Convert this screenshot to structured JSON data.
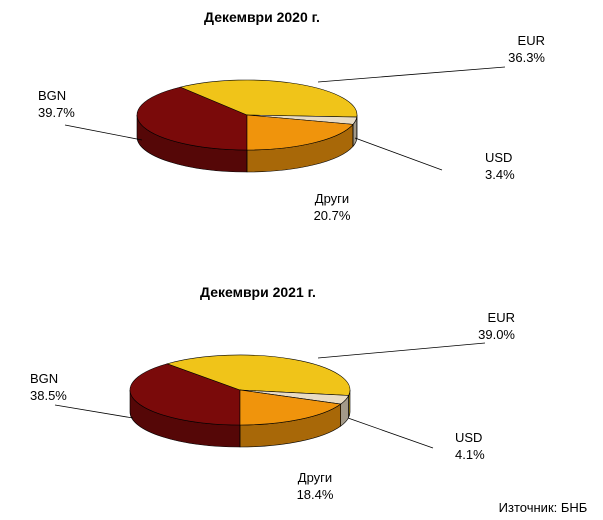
{
  "chart_data": [
    {
      "type": "pie3d",
      "title": "Декември 2020 г.",
      "categories": [
        "BGN",
        "EUR",
        "USD",
        "Други"
      ],
      "values": [
        39.7,
        36.3,
        3.4,
        20.7
      ],
      "value_labels": [
        "39.7%",
        "36.3%",
        "3.4%",
        "20.7%"
      ],
      "colors": [
        "#7a0a0a",
        "#f0c419",
        "#e9dcc4",
        "#f0940c"
      ]
    },
    {
      "type": "pie3d",
      "title": "Декември 2021 г.",
      "categories": [
        "BGN",
        "EUR",
        "USD",
        "Други"
      ],
      "values": [
        38.5,
        39.0,
        4.1,
        18.4
      ],
      "value_labels": [
        "38.5%",
        "39.0%",
        "4.1%",
        "18.4%"
      ],
      "colors": [
        "#7a0a0a",
        "#f0c419",
        "#e9dcc4",
        "#f0940c"
      ]
    }
  ],
  "source": "Източник:  БНБ"
}
